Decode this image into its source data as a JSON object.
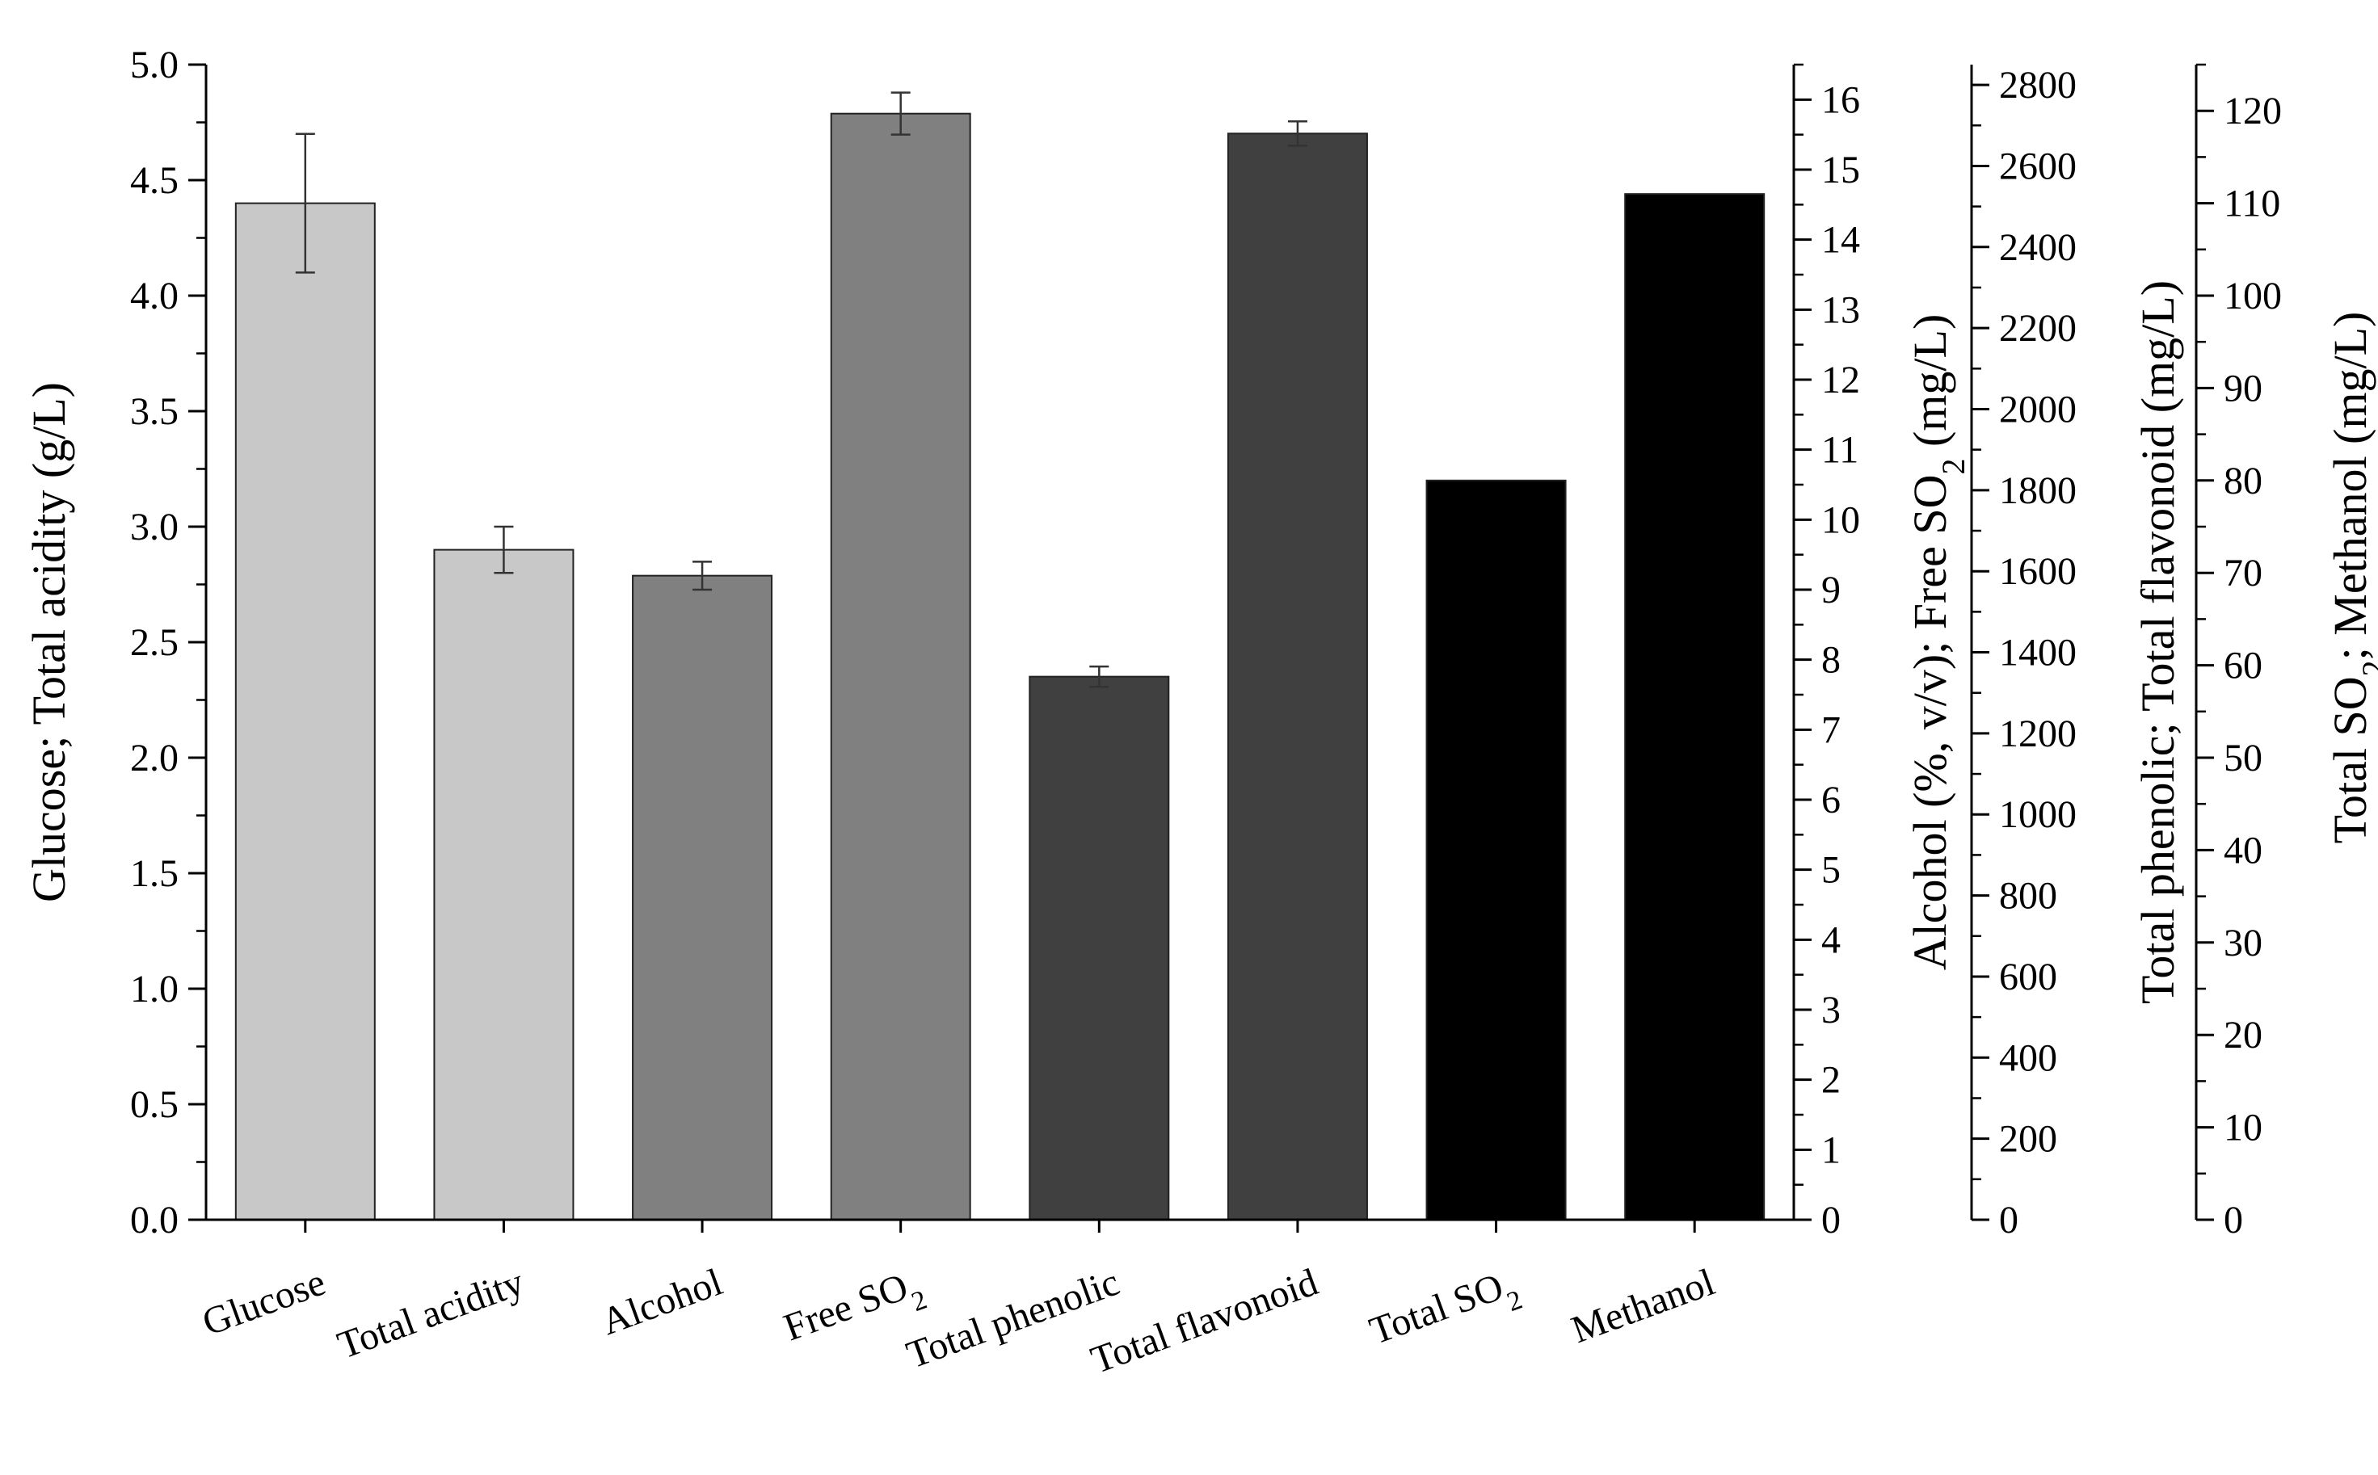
{
  "chart_data": {
    "type": "bar",
    "categories": [
      "Glucose",
      "Total acidity",
      "Alcohol",
      "Free SO2",
      "Total phenolic",
      "Total flavonoid",
      "Total SO2",
      "Methanol"
    ],
    "category_labels": [
      {
        "text": "Glucose",
        "sub": ""
      },
      {
        "text": "Total acidity",
        "sub": ""
      },
      {
        "text": "Alcohol",
        "sub": ""
      },
      {
        "text": "Free SO",
        "sub": "2"
      },
      {
        "text": "Total phenolic",
        "sub": ""
      },
      {
        "text": "Total flavonoid",
        "sub": ""
      },
      {
        "text": "Total SO",
        "sub": "2"
      },
      {
        "text": "Methanol",
        "sub": ""
      }
    ],
    "values": [
      4.4,
      2.9,
      9.2,
      15.8,
      1340,
      2680,
      80,
      111
    ],
    "errors": [
      0.3,
      0.1,
      0.2,
      0.3,
      25,
      30,
      null,
      null
    ],
    "value_axes": [
      0,
      0,
      1,
      1,
      2,
      2,
      3,
      3
    ],
    "bar_colors": [
      "#c8c8c8",
      "#c8c8c8",
      "#808080",
      "#808080",
      "#404040",
      "#404040",
      "#000000",
      "#000000"
    ],
    "axes": [
      {
        "title": "Glucose; Total acidity (g/L)",
        "title_parts": [
          {
            "t": "Glucose; Total acidity (g/L)"
          }
        ],
        "ylim": [
          0,
          5
        ],
        "major_step": 0.5,
        "minor_step": 0.25,
        "decimals": 1
      },
      {
        "title": "Alcohol (%, v/v); Free SO2 (mg/L)",
        "title_parts": [
          {
            "t": "Alcohol (%, v/v); Free SO"
          },
          {
            "t": "2",
            "sub": true
          },
          {
            "t": " (mg/L)"
          }
        ],
        "ylim": [
          0,
          16.5
        ],
        "major_step": 1,
        "minor_step": 0.5,
        "decimals": 0
      },
      {
        "title": "Total phenolic; Total flavonoid (mg/L)",
        "title_parts": [
          {
            "t": "Total phenolic; Total flavonoid (mg/L)"
          }
        ],
        "ylim": [
          0,
          2850
        ],
        "major_step": 200,
        "minor_step": 100,
        "decimals": 0,
        "max_tick": 2800
      },
      {
        "title": "Total SO2; Methanol (mg/L)",
        "title_parts": [
          {
            "t": "Total SO"
          },
          {
            "t": "2",
            "sub": true
          },
          {
            "t": "; Methanol (mg/L)"
          }
        ],
        "ylim": [
          0,
          125
        ],
        "major_step": 10,
        "minor_step": 5,
        "decimals": 0,
        "max_tick": 120
      }
    ],
    "xlabel": "",
    "grid": false,
    "legend": false
  }
}
